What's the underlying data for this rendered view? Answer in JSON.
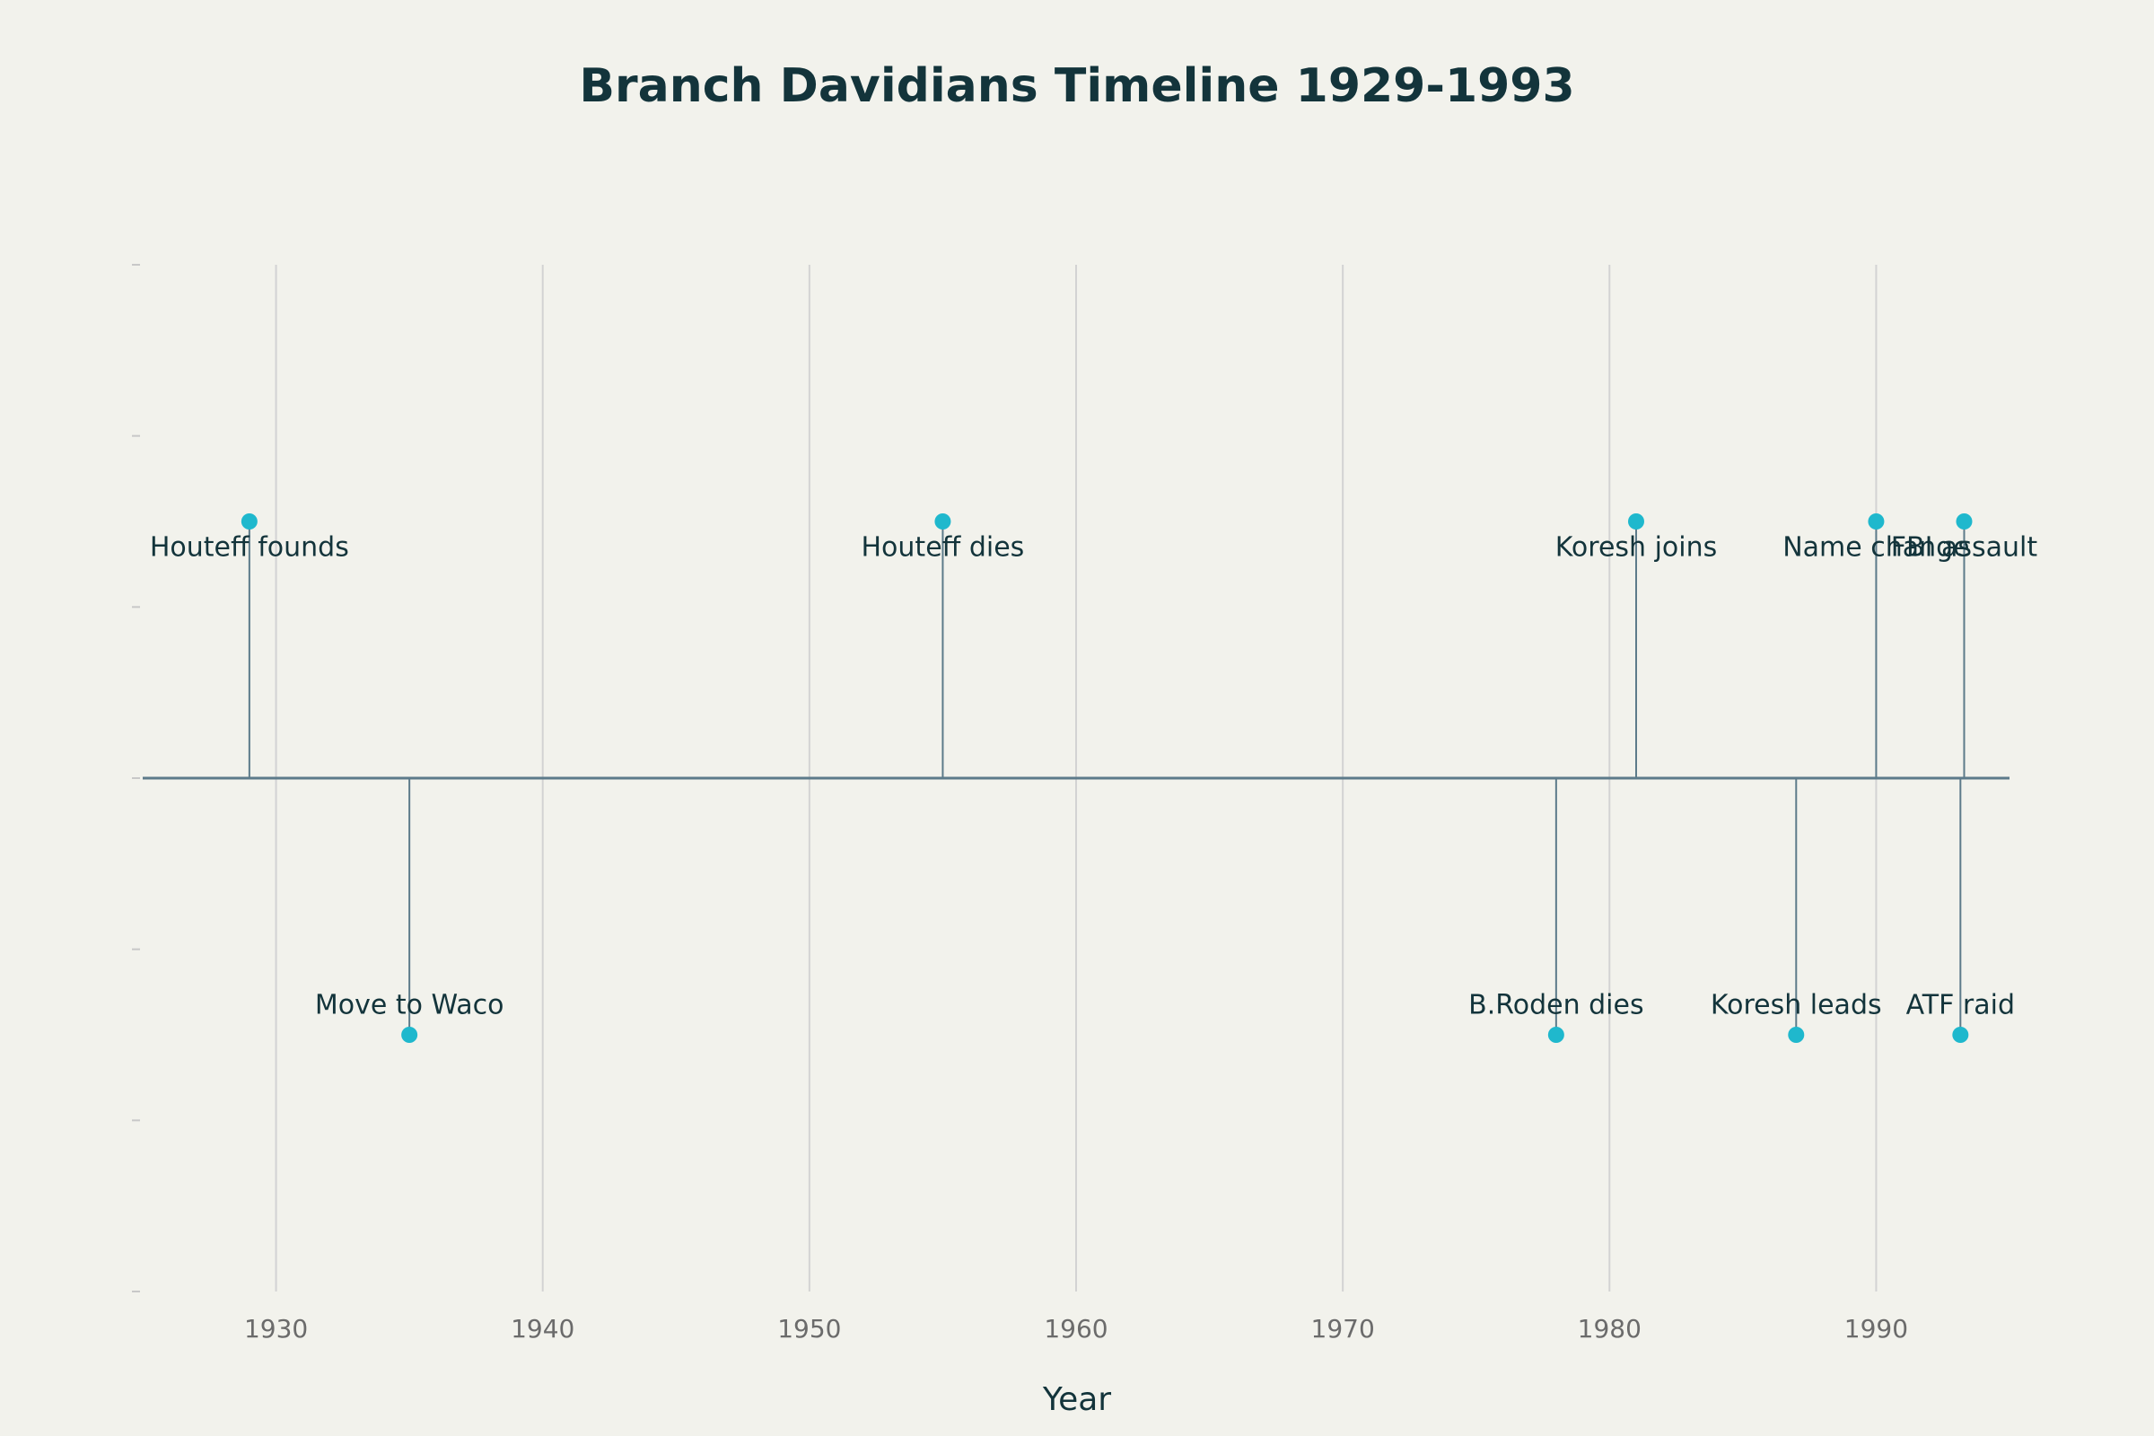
{
  "chart_data": {
    "type": "stem",
    "title": "Branch Davidians Timeline 1929-1993",
    "x_label": "Year",
    "x": [
      1929,
      1935,
      1955,
      1978,
      1981,
      1987,
      1990,
      1993.16,
      1993.3
    ],
    "values": [
      1.5,
      -1.5,
      1.5,
      -1.5,
      1.5,
      -1.5,
      1.5,
      -1.5,
      1.5
    ],
    "labels": [
      "Houteff founds",
      "Move to Waco",
      "Houteff dies",
      "B.Roden dies",
      "Koresh joins",
      "Koresh leads",
      "Name change",
      "ATF raid",
      "FBI assault"
    ],
    "color": "#1fb8cd",
    "stem_color": "#5d7b8a",
    "xlim": [
      1925,
      1995
    ],
    "xticks": [
      1930,
      1940,
      1950,
      1960,
      1970,
      1980,
      1990
    ],
    "ylim": [
      -3,
      3
    ],
    "yticks": [
      -3,
      -2,
      -1,
      0,
      1,
      2,
      3
    ],
    "grid": true
  }
}
